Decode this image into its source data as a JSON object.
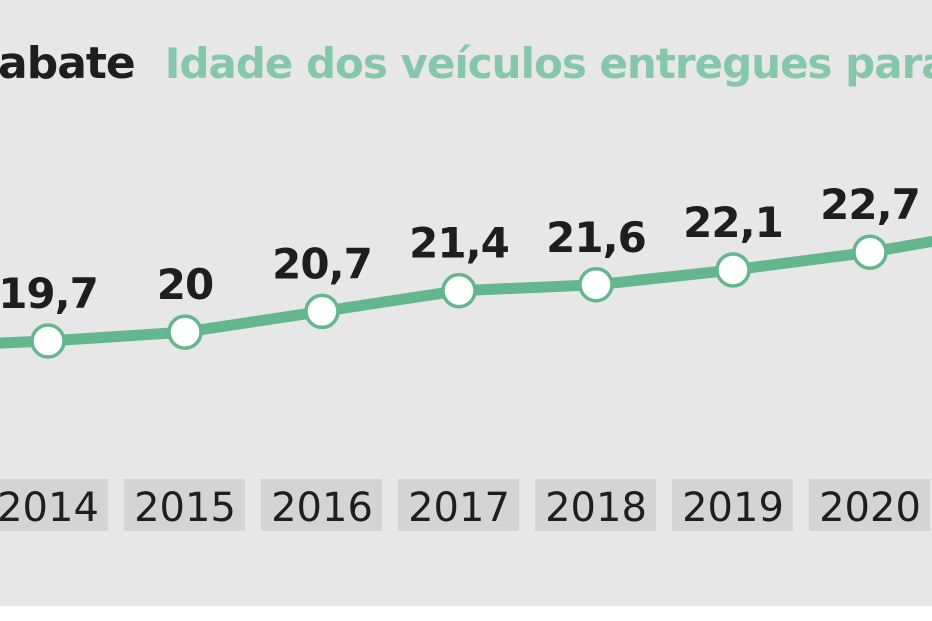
{
  "header": {
    "title_bold": "abate",
    "subtitle": "Idade dos veículos entregues para a"
  },
  "colors": {
    "background": "#e7e7e7",
    "line": "#64b68f",
    "marker_fill": "#ffffff",
    "label_box": "#d4d4d4",
    "text": "#1e1e1e",
    "subtitle": "#85c7ab"
  },
  "chart_data": {
    "type": "line",
    "title": "Idade dos veículos entregues para abate",
    "xlabel": "",
    "ylabel": "",
    "categories": [
      "2014",
      "2015",
      "2016",
      "2017",
      "2018",
      "2019",
      "2020"
    ],
    "series": [
      {
        "name": "Idade dos veículos",
        "values": [
          19.7,
          20.0,
          20.7,
          21.4,
          21.6,
          22.1,
          22.7
        ],
        "labels": [
          "19,7",
          "20",
          "20,7",
          "21,4",
          "21,6",
          "22,1",
          "22,7"
        ]
      }
    ],
    "continues_left_from": 19.5,
    "continues_right_to": 23.5
  }
}
